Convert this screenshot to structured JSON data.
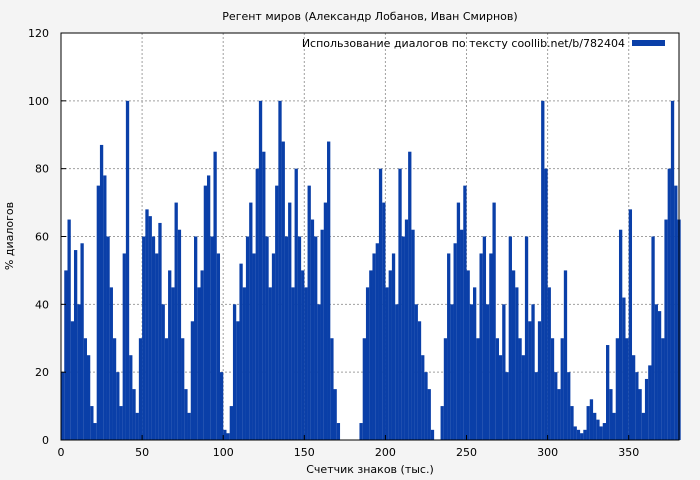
{
  "chart_data": {
    "type": "bar",
    "title": "Регент миров (Александр Лобанов, Иван Смирнов)",
    "xlabel": "Счетчик знаков (тыс.)",
    "ylabel": "% диалогов",
    "xlim": [
      0,
      381
    ],
    "ylim": [
      0,
      120
    ],
    "x_ticks": [
      0,
      50,
      100,
      150,
      200,
      250,
      300,
      350
    ],
    "y_ticks": [
      0,
      20,
      40,
      60,
      80,
      100,
      120
    ],
    "grid": true,
    "legend_position": "top-right",
    "colors": {
      "bar": "#0a3fa8",
      "grid": "#a0a0a0",
      "background": "#f4f4f4"
    },
    "series": [
      {
        "name": "Использование диалогов по тексту coollib.net/b/782404",
        "points": [
          [
            0,
            20
          ],
          [
            2,
            50
          ],
          [
            4,
            65
          ],
          [
            6,
            35
          ],
          [
            8,
            56
          ],
          [
            10,
            40
          ],
          [
            12,
            58
          ],
          [
            14,
            30
          ],
          [
            16,
            25
          ],
          [
            18,
            10
          ],
          [
            20,
            5
          ],
          [
            22,
            75
          ],
          [
            24,
            87
          ],
          [
            26,
            78
          ],
          [
            28,
            60
          ],
          [
            30,
            45
          ],
          [
            32,
            30
          ],
          [
            34,
            20
          ],
          [
            36,
            10
          ],
          [
            38,
            55
          ],
          [
            40,
            100
          ],
          [
            42,
            25
          ],
          [
            44,
            15
          ],
          [
            46,
            8
          ],
          [
            48,
            30
          ],
          [
            50,
            60
          ],
          [
            52,
            68
          ],
          [
            54,
            66
          ],
          [
            56,
            60
          ],
          [
            58,
            55
          ],
          [
            60,
            64
          ],
          [
            62,
            40
          ],
          [
            64,
            30
          ],
          [
            66,
            50
          ],
          [
            68,
            45
          ],
          [
            70,
            70
          ],
          [
            72,
            62
          ],
          [
            74,
            30
          ],
          [
            76,
            15
          ],
          [
            78,
            8
          ],
          [
            80,
            35
          ],
          [
            82,
            60
          ],
          [
            84,
            45
          ],
          [
            86,
            50
          ],
          [
            88,
            75
          ],
          [
            90,
            78
          ],
          [
            92,
            60
          ],
          [
            94,
            85
          ],
          [
            96,
            55
          ],
          [
            98,
            20
          ],
          [
            100,
            3
          ],
          [
            102,
            2
          ],
          [
            104,
            10
          ],
          [
            106,
            40
          ],
          [
            108,
            35
          ],
          [
            110,
            52
          ],
          [
            112,
            45
          ],
          [
            114,
            60
          ],
          [
            116,
            70
          ],
          [
            118,
            55
          ],
          [
            120,
            80
          ],
          [
            122,
            100
          ],
          [
            124,
            85
          ],
          [
            126,
            60
          ],
          [
            128,
            45
          ],
          [
            130,
            55
          ],
          [
            132,
            75
          ],
          [
            134,
            100
          ],
          [
            136,
            88
          ],
          [
            138,
            60
          ],
          [
            140,
            70
          ],
          [
            142,
            45
          ],
          [
            144,
            80
          ],
          [
            146,
            60
          ],
          [
            148,
            50
          ],
          [
            150,
            45
          ],
          [
            152,
            75
          ],
          [
            154,
            65
          ],
          [
            156,
            60
          ],
          [
            158,
            40
          ],
          [
            160,
            62
          ],
          [
            162,
            70
          ],
          [
            164,
            88
          ],
          [
            166,
            30
          ],
          [
            168,
            15
          ],
          [
            170,
            5
          ],
          [
            172,
            0
          ],
          [
            174,
            0
          ],
          [
            176,
            0
          ],
          [
            178,
            0
          ],
          [
            180,
            0
          ],
          [
            182,
            0
          ],
          [
            184,
            5
          ],
          [
            186,
            30
          ],
          [
            188,
            45
          ],
          [
            190,
            50
          ],
          [
            192,
            55
          ],
          [
            194,
            58
          ],
          [
            196,
            80
          ],
          [
            198,
            70
          ],
          [
            200,
            45
          ],
          [
            202,
            50
          ],
          [
            204,
            55
          ],
          [
            206,
            40
          ],
          [
            208,
            80
          ],
          [
            210,
            60
          ],
          [
            212,
            65
          ],
          [
            214,
            85
          ],
          [
            216,
            62
          ],
          [
            218,
            40
          ],
          [
            220,
            35
          ],
          [
            222,
            25
          ],
          [
            224,
            20
          ],
          [
            226,
            15
          ],
          [
            228,
            3
          ],
          [
            230,
            0
          ],
          [
            232,
            0
          ],
          [
            234,
            10
          ],
          [
            236,
            30
          ],
          [
            238,
            55
          ],
          [
            240,
            40
          ],
          [
            242,
            58
          ],
          [
            244,
            70
          ],
          [
            246,
            62
          ],
          [
            248,
            75
          ],
          [
            250,
            50
          ],
          [
            252,
            40
          ],
          [
            254,
            45
          ],
          [
            256,
            30
          ],
          [
            258,
            55
          ],
          [
            260,
            60
          ],
          [
            262,
            40
          ],
          [
            264,
            55
          ],
          [
            266,
            70
          ],
          [
            268,
            30
          ],
          [
            270,
            25
          ],
          [
            272,
            40
          ],
          [
            274,
            20
          ],
          [
            276,
            60
          ],
          [
            278,
            50
          ],
          [
            280,
            45
          ],
          [
            282,
            30
          ],
          [
            284,
            25
          ],
          [
            286,
            60
          ],
          [
            288,
            35
          ],
          [
            290,
            40
          ],
          [
            292,
            20
          ],
          [
            294,
            35
          ],
          [
            296,
            100
          ],
          [
            298,
            80
          ],
          [
            300,
            45
          ],
          [
            302,
            30
          ],
          [
            304,
            20
          ],
          [
            306,
            15
          ],
          [
            308,
            30
          ],
          [
            310,
            50
          ],
          [
            312,
            20
          ],
          [
            314,
            10
          ],
          [
            316,
            4
          ],
          [
            318,
            3
          ],
          [
            320,
            2
          ],
          [
            322,
            3
          ],
          [
            324,
            10
          ],
          [
            326,
            12
          ],
          [
            328,
            8
          ],
          [
            330,
            6
          ],
          [
            332,
            4
          ],
          [
            334,
            5
          ],
          [
            336,
            28
          ],
          [
            338,
            15
          ],
          [
            340,
            8
          ],
          [
            342,
            30
          ],
          [
            344,
            62
          ],
          [
            346,
            42
          ],
          [
            348,
            30
          ],
          [
            350,
            68
          ],
          [
            352,
            25
          ],
          [
            354,
            20
          ],
          [
            356,
            15
          ],
          [
            358,
            8
          ],
          [
            360,
            18
          ],
          [
            362,
            22
          ],
          [
            364,
            60
          ],
          [
            366,
            40
          ],
          [
            368,
            38
          ],
          [
            370,
            30
          ],
          [
            372,
            65
          ],
          [
            374,
            80
          ],
          [
            376,
            100
          ],
          [
            378,
            75
          ],
          [
            380,
            65
          ]
        ]
      }
    ]
  }
}
